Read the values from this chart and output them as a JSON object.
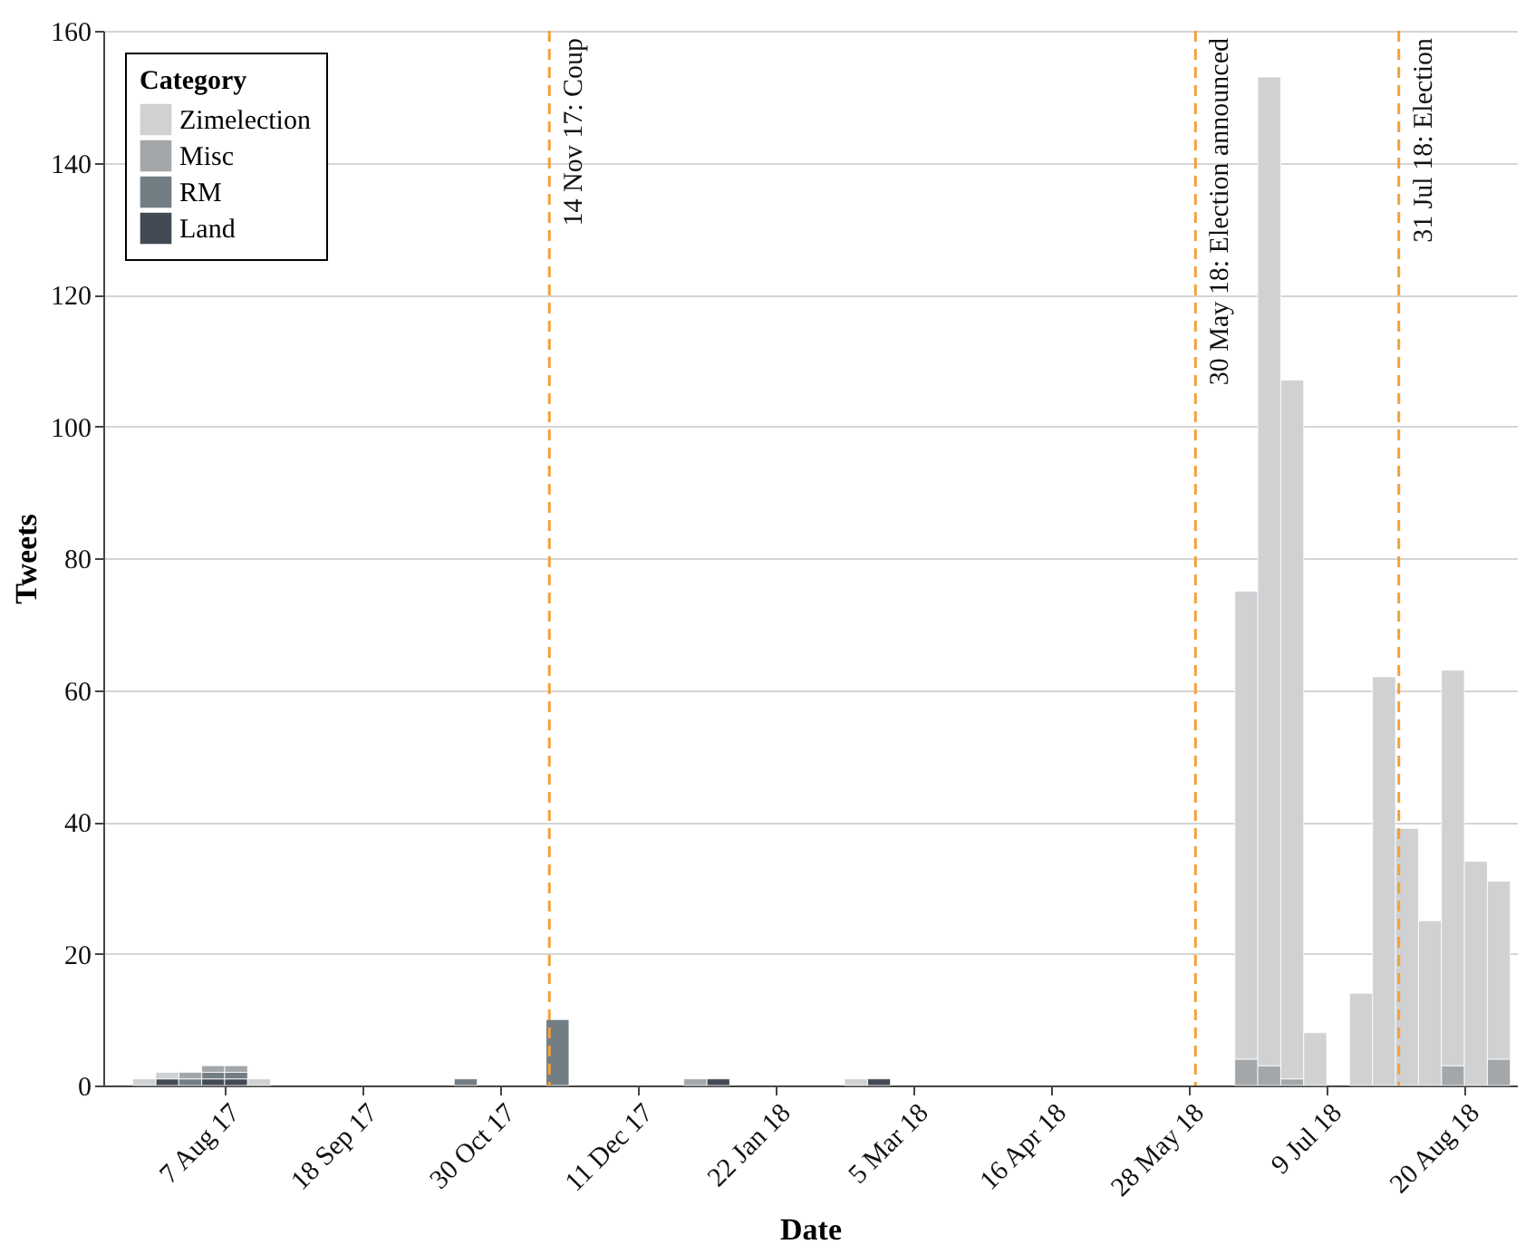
{
  "chart_data": {
    "type": "bar",
    "stacked": true,
    "xlabel": "Date",
    "ylabel": "Tweets",
    "legend_title": "Category",
    "legend": "top left",
    "grid": "y",
    "x": [
      "2017-07-13T12:00",
      "2017-07-20T12:00",
      "2017-07-27T12:00",
      "2017-08-03T12:00",
      "2017-08-10T12:00",
      "2017-08-17T12:00",
      "2017-10-19T12:00",
      "2017-11-16T12:00",
      "2017-12-28T12:00",
      "2018-01-04T12:00",
      "2018-02-15T12:00",
      "2018-02-22T12:00",
      "2018-06-14T12:00",
      "2018-06-21T12:00",
      "2018-06-28T12:00",
      "2018-07-05T12:00",
      "2018-07-19T12:00",
      "2018-07-26T12:00",
      "2018-08-02T12:00",
      "2018-08-09T12:00",
      "2018-08-16T12:00",
      "2018-08-23T12:00",
      "2018-08-30T12:00"
    ],
    "series": [
      {
        "name": "Land",
        "color": "#434a56",
        "values": [
          0,
          1,
          0,
          1,
          1,
          0,
          0,
          0,
          0,
          1,
          0,
          1,
          0,
          0,
          0,
          0,
          0,
          0,
          0,
          0,
          0,
          0,
          0
        ]
      },
      {
        "name": "RM",
        "color": "#737d84",
        "values": [
          0,
          0,
          1,
          1,
          1,
          0,
          1,
          10,
          0,
          0,
          0,
          0,
          0,
          0,
          0,
          0,
          0,
          0,
          0,
          0,
          0,
          0,
          0
        ]
      },
      {
        "name": "Misc",
        "color": "#a4a7aa",
        "values": [
          0,
          0,
          1,
          1,
          1,
          0,
          0,
          0,
          1,
          0,
          0,
          0,
          4,
          3,
          1,
          0,
          0,
          0,
          0,
          0,
          3,
          0,
          4
        ]
      },
      {
        "name": "Zimelection",
        "color": "#d0d1d3",
        "values": [
          1,
          1,
          0,
          0,
          0,
          1,
          0,
          0,
          0,
          0,
          1,
          0,
          71,
          150,
          106,
          8,
          14,
          62,
          39,
          25,
          60,
          34,
          27
        ]
      }
    ],
    "xlim": [
      "2017-07-01",
      "2018-09-05"
    ],
    "xticks": [
      {
        "value": "2017-08-07",
        "label": "7 Aug 17"
      },
      {
        "value": "2017-09-18",
        "label": "18 Sep 17"
      },
      {
        "value": "2017-10-30",
        "label": "30 Oct 17"
      },
      {
        "value": "2017-12-11",
        "label": "11 Dec 17"
      },
      {
        "value": "2018-01-22",
        "label": "22 Jan 18"
      },
      {
        "value": "2018-03-05",
        "label": "5 Mar 18"
      },
      {
        "value": "2018-04-16",
        "label": "16 Apr 18"
      },
      {
        "value": "2018-05-28",
        "label": "28 May 18"
      },
      {
        "value": "2018-07-09",
        "label": "9 Jul 18"
      },
      {
        "value": "2018-08-20",
        "label": "20 Aug 18"
      }
    ],
    "ylim": [
      0,
      160
    ],
    "yticks": [
      0,
      20,
      40,
      60,
      80,
      100,
      120,
      140,
      160
    ],
    "ref_lines": [
      {
        "axis": "x",
        "value": "2017-11-14",
        "label": "14 Nov 17: Coup",
        "color": "#f5a03a",
        "line_style": "dashed"
      },
      {
        "axis": "x",
        "value": "2018-05-30",
        "label": "30 May 18: Election announced",
        "color": "#f5a03a",
        "line_style": "dashed"
      },
      {
        "axis": "x",
        "value": "2018-07-31",
        "label": "31 Jul 18: Election",
        "color": "#f5a03a",
        "line_style": "dashed"
      }
    ]
  }
}
